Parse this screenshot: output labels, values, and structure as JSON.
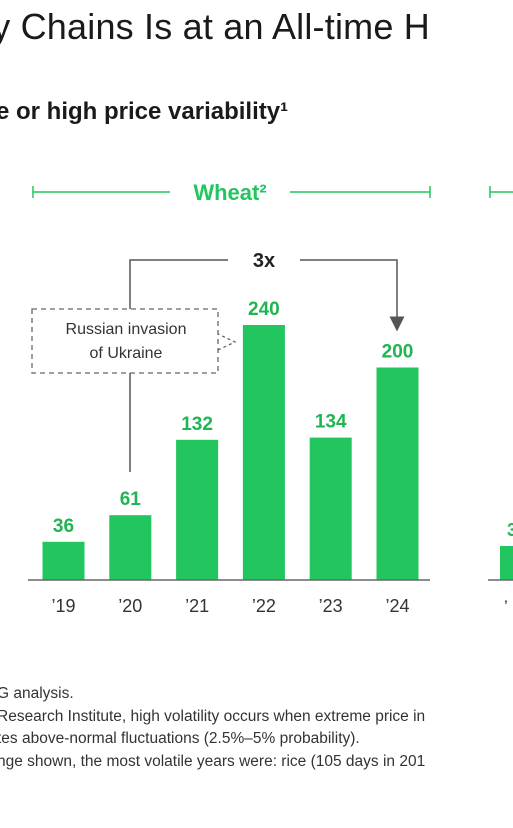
{
  "header": {
    "title": "ly Chains Is at an All-time H",
    "subtitle": "e or high price variability¹"
  },
  "colors": {
    "bar": "#22c55e",
    "label": "#20b453",
    "connector": "#555555",
    "axis": "#666666",
    "text": "#222222"
  },
  "chart_data": {
    "type": "bar",
    "panel_title": "Wheat²",
    "categories": [
      "’19",
      "’20",
      "’21",
      "’22",
      "’23",
      "’24"
    ],
    "values": [
      36,
      61,
      132,
      240,
      134,
      200
    ],
    "data_labels": [
      "36",
      "61",
      "132",
      "240",
      "134",
      "200"
    ],
    "ylim": [
      0,
      240
    ],
    "multiplier_label": "3x",
    "annotation": [
      "Russian invasion",
      "of Ukraine"
    ],
    "next_panel_partial_value_label": "3",
    "next_panel_partial_tick_label": "’"
  },
  "footnotes": [
    "G analysis.",
    "Research Institute, high volatility occurs when extreme price in",
    "tes above-normal fluctuations (2.5%–5% probability).",
    "nge shown, the most volatile years were: rice (105 days in 201"
  ]
}
